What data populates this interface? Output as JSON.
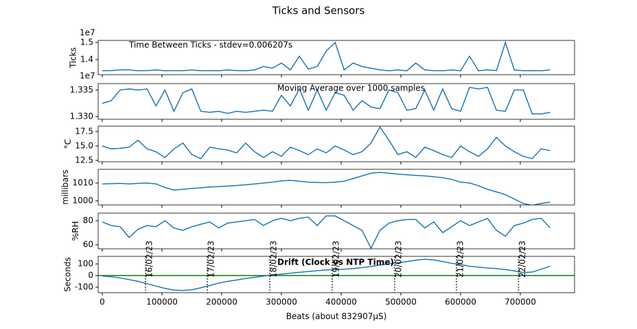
{
  "figure": {
    "title": "Ticks and Sensors",
    "xlabel": "Beats (about 832907µS)",
    "x": [
      0,
      15000,
      30000,
      45000,
      60000,
      75000,
      90000,
      105000,
      120000,
      135000,
      150000,
      165000,
      180000,
      195000,
      210000,
      225000,
      240000,
      255000,
      270000,
      285000,
      300000,
      315000,
      330000,
      345000,
      360000,
      375000,
      390000,
      405000,
      420000,
      435000,
      450000,
      465000,
      480000,
      495000,
      510000,
      525000,
      540000,
      555000,
      570000,
      585000,
      600000,
      615000,
      630000,
      645000,
      660000,
      675000,
      690000,
      705000,
      720000,
      735000,
      750000
    ],
    "xlim": [
      -6900,
      790800
    ],
    "xticks": [
      0,
      100000,
      200000,
      300000,
      400000,
      500000,
      600000,
      700000
    ]
  },
  "chart_data": [
    {
      "type": "line",
      "title": "Time Between Ticks - stdev=0.006207s",
      "ylabel": "Ticks",
      "offset_text": "1e7",
      "ylim": [
        1.312,
        1.512
      ],
      "yticks": [
        1.4,
        1.5
      ],
      "series": [
        {
          "color": "#1f77b4",
          "values": [
            1.335,
            1.336,
            1.34,
            1.34,
            1.335,
            1.336,
            1.34,
            1.335,
            1.336,
            1.335,
            1.34,
            1.335,
            1.336,
            1.335,
            1.34,
            1.336,
            1.335,
            1.34,
            1.36,
            1.35,
            1.38,
            1.34,
            1.42,
            1.345,
            1.36,
            1.45,
            1.5,
            1.34,
            1.38,
            1.36,
            1.35,
            1.34,
            1.335,
            1.34,
            1.335,
            1.38,
            1.34,
            1.336,
            1.335,
            1.34,
            1.335,
            1.42,
            1.335,
            1.34,
            1.336,
            1.5,
            1.34,
            1.335,
            1.336,
            1.335,
            1.34
          ]
        }
      ]
    },
    {
      "type": "line",
      "title": "Moving Average over 1000 samples",
      "offset_text": "1e7",
      "ylim": [
        1.3295,
        1.3362
      ],
      "yticks": [
        {
          "value": 1.33,
          "label": "1.330"
        },
        1.335
      ],
      "series": [
        {
          "color": "#1f77b4",
          "values": [
            1.3325,
            1.333,
            1.335,
            1.3352,
            1.335,
            1.3352,
            1.332,
            1.335,
            1.331,
            1.3345,
            1.3352,
            1.331,
            1.3308,
            1.331,
            1.3306,
            1.331,
            1.3308,
            1.331,
            1.3312,
            1.331,
            1.334,
            1.332,
            1.3352,
            1.3312,
            1.335,
            1.3312,
            1.3345,
            1.334,
            1.3312,
            1.333,
            1.3318,
            1.3315,
            1.335,
            1.3345,
            1.3312,
            1.3315,
            1.335,
            1.3312,
            1.3352,
            1.3315,
            1.331,
            1.3355,
            1.3352,
            1.3355,
            1.3312,
            1.331,
            1.335,
            1.335,
            1.3305,
            1.3305,
            1.3308
          ]
        }
      ]
    },
    {
      "type": "line",
      "ylabel": "°C",
      "ylim": [
        12.26,
        18.45
      ],
      "yticks": [
        12.5,
        {
          "value": 15,
          "label": "15.0"
        },
        17.5
      ],
      "series": [
        {
          "color": "#1f77b4",
          "values": [
            15.0,
            14.5,
            14.6,
            14.8,
            16.0,
            14.5,
            14.0,
            13.0,
            14.5,
            15.5,
            13.5,
            12.8,
            14.8,
            14.5,
            14.3,
            13.8,
            15.5,
            14.0,
            13.0,
            14.0,
            13.2,
            14.8,
            14.2,
            13.5,
            14.5,
            13.8,
            15.0,
            14.3,
            13.5,
            14.0,
            15.5,
            18.3,
            16.0,
            13.5,
            14.0,
            13.0,
            14.8,
            14.2,
            13.5,
            13.0,
            15.0,
            14.0,
            13.2,
            14.5,
            16.5,
            15.0,
            14.0,
            13.2,
            12.8,
            14.5,
            14.2
          ]
        }
      ]
    },
    {
      "type": "line",
      "ylabel": "millibars",
      "ylim": [
        997.7,
        1017.7
      ],
      "yticks": [
        1000,
        1010
      ],
      "series": [
        {
          "color": "#1f77b4",
          "values": [
            1009.5,
            1009.6,
            1009.8,
            1009.5,
            1009.8,
            1010,
            1009.5,
            1007.5,
            1006,
            1006.5,
            1007,
            1007.3,
            1007.8,
            1008,
            1008.3,
            1008.6,
            1009,
            1009.5,
            1010,
            1010.5,
            1011.2,
            1011.5,
            1011,
            1010.5,
            1010.3,
            1010.2,
            1010.5,
            1011,
            1012.5,
            1014,
            1015.5,
            1016,
            1015.5,
            1015,
            1014.6,
            1014.3,
            1014,
            1013.5,
            1013,
            1012,
            1010.5,
            1010,
            1008.5,
            1006.5,
            1005,
            1003.5,
            1001,
            998.5,
            997.5,
            998.5,
            999.3
          ]
        }
      ]
    },
    {
      "type": "line",
      "ylabel": "%RH",
      "ylim": [
        56.6,
        86.3
      ],
      "yticks": [
        60,
        80
      ],
      "series": [
        {
          "color": "#1f77b4",
          "values": [
            79,
            76,
            75,
            66,
            73,
            76,
            75,
            80,
            74,
            72,
            75,
            77,
            79,
            74,
            78,
            79,
            80,
            81,
            76,
            80,
            82,
            80,
            82,
            83,
            76,
            84,
            84,
            80,
            76,
            72,
            57,
            72,
            78,
            80,
            81,
            81,
            74,
            79,
            70,
            75,
            80,
            76,
            79,
            82,
            72,
            67,
            76,
            78,
            81,
            82,
            74
          ]
        }
      ]
    },
    {
      "type": "line",
      "title": "Drift (Clock vs NTP Time)",
      "ylabel": "Seconds",
      "ylim": [
        -147,
        165
      ],
      "yticks": [
        -100,
        0,
        100
      ],
      "hline": {
        "value": 0,
        "color": "green"
      },
      "vlines": [
        {
          "x": 72400,
          "label": "16/02/23"
        },
        {
          "x": 175900,
          "label": "17/02/23"
        },
        {
          "x": 280500,
          "label": "18/02/23"
        },
        {
          "x": 385000,
          "label": "19/02/23"
        },
        {
          "x": 489600,
          "label": "20/02/23"
        },
        {
          "x": 592900,
          "label": "21/02/23"
        },
        {
          "x": 697000,
          "label": "22/02/23"
        }
      ],
      "series": [
        {
          "color": "#1f77b4",
          "values": [
            -5,
            -10,
            -20,
            -35,
            -50,
            -70,
            -90,
            -110,
            -125,
            -128,
            -122,
            -105,
            -85,
            -65,
            -50,
            -38,
            -25,
            -15,
            -5,
            5,
            12,
            20,
            28,
            35,
            42,
            48,
            52,
            55,
            60,
            68,
            78,
            90,
            100,
            110,
            120,
            132,
            140,
            135,
            120,
            105,
            95,
            80,
            72,
            65,
            60,
            52,
            40,
            25,
            30,
            55,
            80
          ]
        }
      ]
    }
  ]
}
